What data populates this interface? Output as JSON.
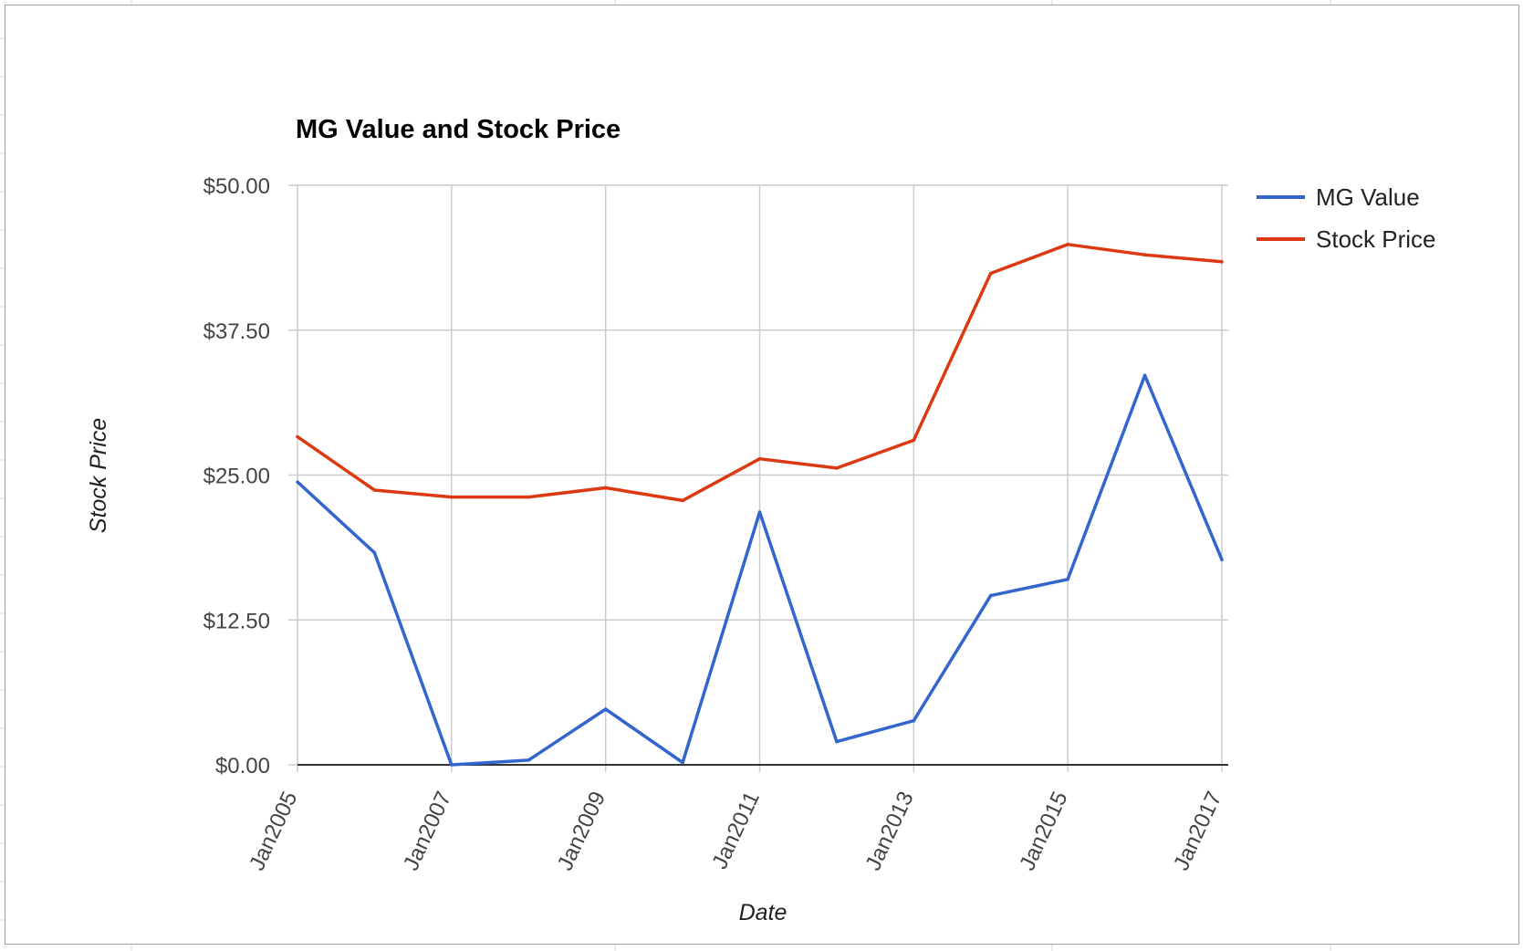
{
  "chart_data": {
    "type": "line",
    "title": "MG Value and Stock Price",
    "xlabel": "Date",
    "ylabel": "Stock Price",
    "x_tick_labels": [
      "Jan2005",
      "Jan2007",
      "Jan2009",
      "Jan2011",
      "Jan2013",
      "Jan2015",
      "Jan2017"
    ],
    "x": [
      "2005-01",
      "2006-01",
      "2007-01",
      "2008-01",
      "2009-01",
      "2010-01",
      "2011-01",
      "2012-01",
      "2013-01",
      "2014-01",
      "2015-01",
      "2016-01",
      "2017-01"
    ],
    "xlim": [
      "2005-01",
      "2017-02"
    ],
    "y_tick_labels": [
      "$0.00",
      "$12.50",
      "$25.00",
      "$37.50",
      "$50.00"
    ],
    "y_ticks": [
      0,
      12.5,
      25,
      37.5,
      50
    ],
    "ylim": [
      0,
      50
    ],
    "grid": true,
    "legend_position": "right",
    "series": [
      {
        "name": "MG Value",
        "color": "#3366cc",
        "values": [
          24.4,
          18.3,
          0.0,
          0.4,
          4.8,
          0.2,
          21.8,
          2.0,
          3.8,
          14.6,
          16.0,
          33.6,
          17.7
        ]
      },
      {
        "name": "Stock Price",
        "color": "#dc3912",
        "values": [
          28.3,
          23.7,
          23.1,
          23.1,
          23.9,
          22.8,
          26.4,
          25.6,
          28.0,
          42.4,
          44.9,
          44.0,
          43.4
        ]
      }
    ]
  }
}
